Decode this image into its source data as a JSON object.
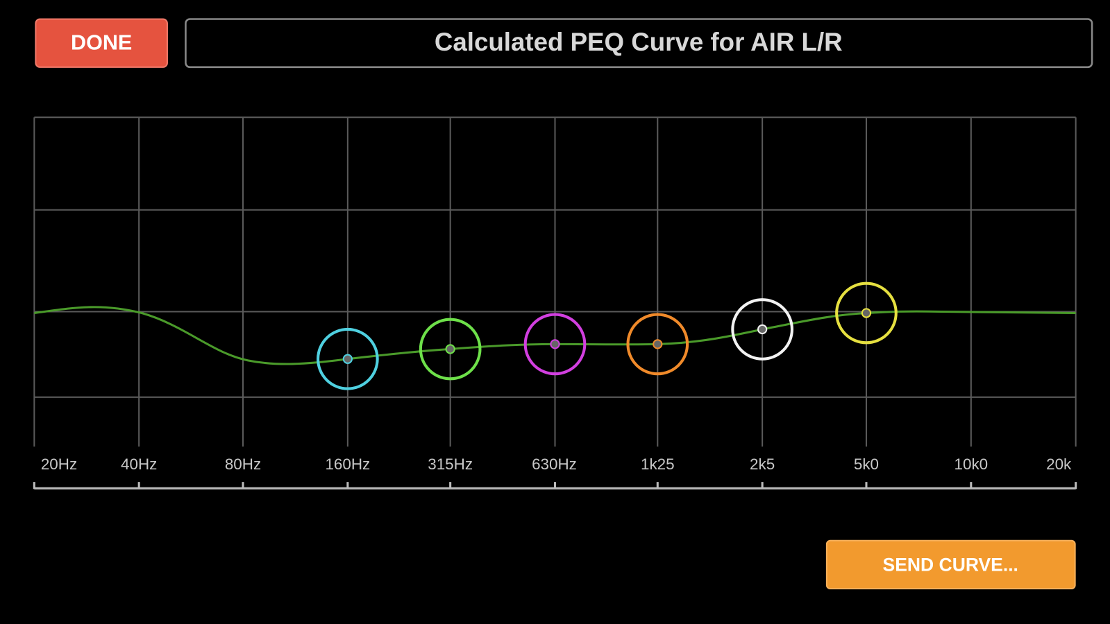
{
  "header": {
    "done_button": "DONE",
    "title": "Calculated PEQ Curve for AIR L/R"
  },
  "graph": {
    "x_labels": [
      "20Hz",
      "40Hz",
      "80Hz",
      "160Hz",
      "315Hz",
      "630Hz",
      "1k25",
      "2k5",
      "5k0",
      "10k0",
      "20k"
    ]
  },
  "footer": {
    "send_button": "SEND CURVE..."
  }
}
